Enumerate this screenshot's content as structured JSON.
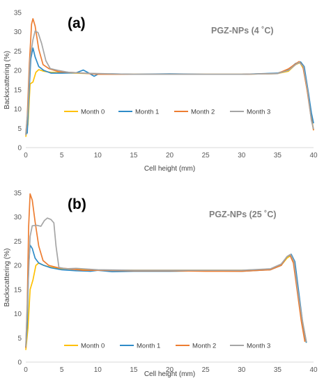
{
  "chart_data": [
    {
      "type": "line",
      "panel_label": "(a)",
      "annotation": "PGZ-NPs (4 ˚C)",
      "xlabel": "Cell height (mm)",
      "ylabel": "Backscattering (%)",
      "xlim": [
        0,
        40
      ],
      "ylim": [
        0,
        35
      ],
      "xticks": [
        "0",
        "5",
        "10",
        "15",
        "20",
        "25",
        "30",
        "35",
        "40"
      ],
      "yticks": [
        "0",
        "5",
        "10",
        "15",
        "20",
        "25",
        "30",
        "35"
      ],
      "grid": false,
      "legend_position": "bottom-center",
      "series": [
        {
          "name": "Month 0",
          "color": "#FFC000",
          "points": [
            [
              0,
              2.8
            ],
            [
              0.3,
              6
            ],
            [
              0.6,
              16.5
            ],
            [
              1.0,
              17
            ],
            [
              1.4,
              19.5
            ],
            [
              1.8,
              20.2
            ],
            [
              2.5,
              19.8
            ],
            [
              3.5,
              19.5
            ],
            [
              5,
              19.4
            ],
            [
              7,
              19.3
            ],
            [
              10,
              19.1
            ],
            [
              15,
              19
            ],
            [
              20,
              19
            ],
            [
              25,
              19
            ],
            [
              30,
              19
            ],
            [
              35,
              19.2
            ],
            [
              36.5,
              19.8
            ],
            [
              37.5,
              21.5
            ],
            [
              38.1,
              22
            ],
            [
              38.6,
              20.5
            ],
            [
              39.2,
              14
            ],
            [
              39.6,
              9
            ],
            [
              40,
              4.5
            ]
          ]
        },
        {
          "name": "Month 1",
          "color": "#2E8BC8",
          "points": [
            [
              0,
              3.5
            ],
            [
              0.2,
              3.8
            ],
            [
              0.4,
              12
            ],
            [
              0.7,
              23
            ],
            [
              1.0,
              25.8
            ],
            [
              1.3,
              23.5
            ],
            [
              1.8,
              21
            ],
            [
              2.5,
              20
            ],
            [
              3.5,
              19.3
            ],
            [
              5,
              19.3
            ],
            [
              7,
              19.4
            ],
            [
              8,
              20.1
            ],
            [
              8.7,
              19.4
            ],
            [
              9.5,
              18.5
            ],
            [
              10,
              19
            ],
            [
              12,
              19.1
            ],
            [
              15,
              19
            ],
            [
              20,
              19.1
            ],
            [
              25,
              19
            ],
            [
              30,
              19
            ],
            [
              35,
              19.3
            ],
            [
              36.5,
              20.2
            ],
            [
              37.5,
              21.8
            ],
            [
              38.2,
              22.2
            ],
            [
              38.7,
              21
            ],
            [
              39.3,
              14
            ],
            [
              39.7,
              9
            ],
            [
              40,
              6.3
            ]
          ]
        },
        {
          "name": "Month 2",
          "color": "#ED7D31",
          "points": [
            [
              0,
              3.5
            ],
            [
              0.2,
              8
            ],
            [
              0.5,
              22
            ],
            [
              0.8,
              32
            ],
            [
              1.0,
              33.4
            ],
            [
              1.3,
              31.5
            ],
            [
              1.8,
              25.5
            ],
            [
              2.4,
              21.5
            ],
            [
              3.2,
              20.5
            ],
            [
              4.5,
              19.7
            ],
            [
              6,
              19.5
            ],
            [
              8,
              19.3
            ],
            [
              10,
              19
            ],
            [
              15,
              19
            ],
            [
              20,
              19
            ],
            [
              25,
              19
            ],
            [
              30,
              19
            ],
            [
              35,
              19.2
            ],
            [
              36.5,
              20.4
            ],
            [
              37.5,
              21.7
            ],
            [
              38,
              22.3
            ],
            [
              38.5,
              21.2
            ],
            [
              39.1,
              15
            ],
            [
              39.6,
              8.5
            ],
            [
              40,
              4.5
            ]
          ]
        },
        {
          "name": "Month 3",
          "color": "#A5A5A5",
          "points": [
            [
              0,
              3.2
            ],
            [
              0.3,
              10
            ],
            [
              0.6,
              23
            ],
            [
              1.0,
              28
            ],
            [
              1.3,
              30.2
            ],
            [
              1.7,
              29.8
            ],
            [
              2.2,
              27
            ],
            [
              2.8,
              22.5
            ],
            [
              3.4,
              20.5
            ],
            [
              4.5,
              20
            ],
            [
              6,
              19.5
            ],
            [
              8,
              19.3
            ],
            [
              10,
              19.2
            ],
            [
              15,
              19
            ],
            [
              20,
              19
            ],
            [
              25,
              19
            ],
            [
              30,
              19
            ],
            [
              35,
              19.2
            ],
            [
              36.5,
              20
            ],
            [
              37.5,
              21.5
            ],
            [
              38,
              22.1
            ],
            [
              38.6,
              21
            ],
            [
              39.2,
              14.5
            ],
            [
              39.7,
              7
            ],
            [
              40,
              4.8
            ]
          ]
        }
      ]
    },
    {
      "type": "line",
      "panel_label": "(b)",
      "annotation": "PGZ-NPs (25 ˚C)",
      "xlabel": "Cell height (mm)",
      "ylabel": "Backscattering (%)",
      "xlim": [
        0,
        40
      ],
      "ylim": [
        0,
        35
      ],
      "xticks": [
        "0",
        "5",
        "10",
        "15",
        "20",
        "25",
        "30",
        "35",
        "40"
      ],
      "yticks": [
        "0",
        "5",
        "10",
        "15",
        "20",
        "25",
        "30",
        "35"
      ],
      "grid": false,
      "legend_position": "bottom-center",
      "series": [
        {
          "name": "Month 0",
          "color": "#FFC000",
          "points": [
            [
              0,
              2.5
            ],
            [
              0.3,
              7
            ],
            [
              0.6,
              15
            ],
            [
              1.0,
              17
            ],
            [
              1.4,
              20
            ],
            [
              1.8,
              20.5
            ],
            [
              2.5,
              20
            ],
            [
              3.5,
              19.6
            ],
            [
              5,
              19.3
            ],
            [
              7,
              19.2
            ],
            [
              10,
              19
            ],
            [
              15,
              19
            ],
            [
              20,
              19
            ],
            [
              25,
              19
            ],
            [
              30,
              19
            ],
            [
              34,
              19.2
            ],
            [
              35.5,
              20
            ],
            [
              36.3,
              21.5
            ],
            [
              36.8,
              22
            ],
            [
              37.3,
              20.5
            ],
            [
              37.8,
              15
            ],
            [
              38.4,
              9
            ],
            [
              39,
              4
            ]
          ]
        },
        {
          "name": "Month 1",
          "color": "#2E8BC8",
          "points": [
            [
              0,
              3
            ],
            [
              0.2,
              8
            ],
            [
              0.4,
              20
            ],
            [
              0.6,
              24.2
            ],
            [
              0.9,
              23.5
            ],
            [
              1.3,
              21.5
            ],
            [
              1.8,
              20.5
            ],
            [
              2.5,
              20
            ],
            [
              3.5,
              19.5
            ],
            [
              5,
              19.1
            ],
            [
              7,
              18.9
            ],
            [
              9,
              18.8
            ],
            [
              10,
              19
            ],
            [
              12,
              18.7
            ],
            [
              15,
              18.8
            ],
            [
              20,
              18.8
            ],
            [
              25,
              18.9
            ],
            [
              30,
              18.8
            ],
            [
              34,
              19.1
            ],
            [
              35.5,
              20
            ],
            [
              36.3,
              21.8
            ],
            [
              36.9,
              22.3
            ],
            [
              37.4,
              20.8
            ],
            [
              37.9,
              15
            ],
            [
              38.5,
              8
            ],
            [
              39,
              4
            ]
          ]
        },
        {
          "name": "Month 2",
          "color": "#ED7D31",
          "points": [
            [
              0,
              3
            ],
            [
              0.2,
              12
            ],
            [
              0.4,
              28
            ],
            [
              0.6,
              34.8
            ],
            [
              0.9,
              33.5
            ],
            [
              1.3,
              29
            ],
            [
              1.8,
              24
            ],
            [
              2.4,
              21
            ],
            [
              3.2,
              20
            ],
            [
              4.5,
              19.5
            ],
            [
              6,
              19.3
            ],
            [
              8,
              19
            ],
            [
              10,
              19
            ],
            [
              15,
              18.9
            ],
            [
              20,
              18.9
            ],
            [
              25,
              18.8
            ],
            [
              30,
              18.8
            ],
            [
              34,
              19.1
            ],
            [
              35.5,
              20
            ],
            [
              36.3,
              21.8
            ],
            [
              36.7,
              22.2
            ],
            [
              37.2,
              20.5
            ],
            [
              37.7,
              15
            ],
            [
              38.3,
              8.5
            ],
            [
              38.8,
              4.2
            ]
          ]
        },
        {
          "name": "Month 3",
          "color": "#A5A5A5",
          "points": [
            [
              0,
              3.2
            ],
            [
              0.3,
              15
            ],
            [
              0.6,
              26
            ],
            [
              0.9,
              28.2
            ],
            [
              1.5,
              28.3
            ],
            [
              2.1,
              28.1
            ],
            [
              2.6,
              29.3
            ],
            [
              3.0,
              29.8
            ],
            [
              3.5,
              29.5
            ],
            [
              3.9,
              28.8
            ],
            [
              4.2,
              24
            ],
            [
              4.6,
              19.6
            ],
            [
              5.5,
              19.3
            ],
            [
              7,
              19.4
            ],
            [
              9,
              19.2
            ],
            [
              10,
              19.1
            ],
            [
              15,
              19
            ],
            [
              20,
              19
            ],
            [
              25,
              19
            ],
            [
              30,
              19
            ],
            [
              34,
              19.3
            ],
            [
              35.5,
              20.3
            ],
            [
              36.3,
              21.8
            ],
            [
              36.8,
              22.3
            ],
            [
              37.3,
              20.8
            ],
            [
              37.8,
              15
            ],
            [
              38.4,
              9
            ],
            [
              39,
              4.2
            ]
          ]
        }
      ]
    }
  ]
}
